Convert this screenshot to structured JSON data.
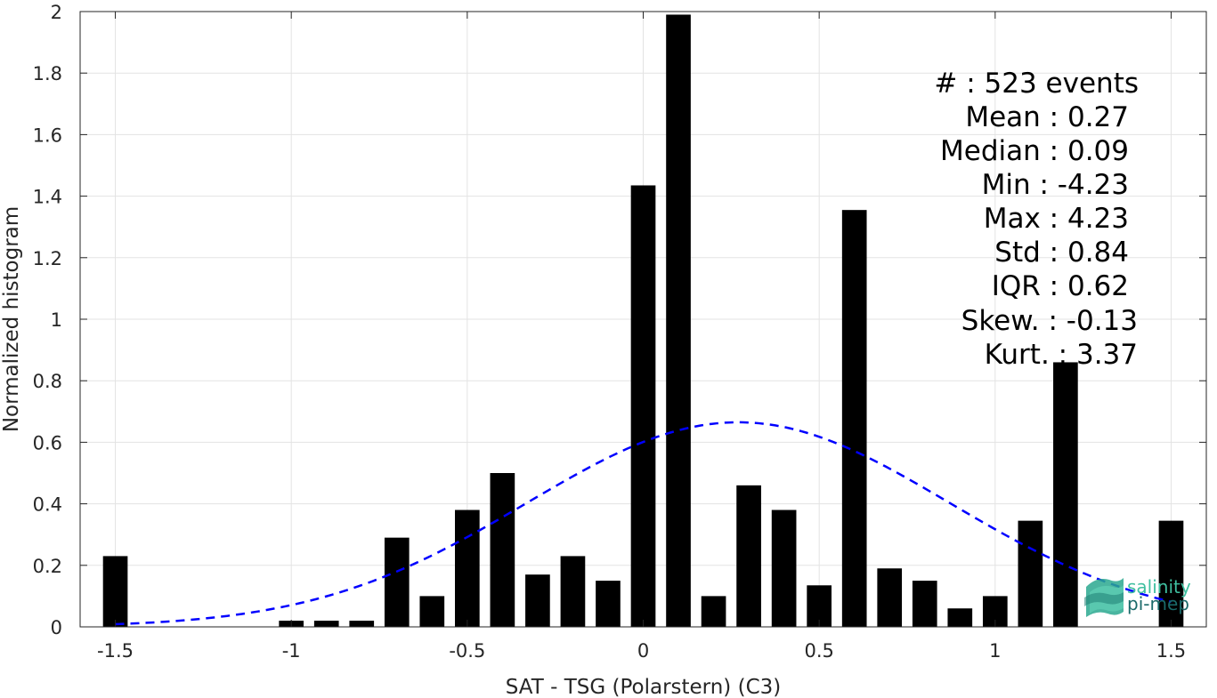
{
  "chart_data": {
    "type": "bar",
    "xlabel": "SAT - TSG (Polarstern) (C3)",
    "ylabel": "Normalized histogram",
    "xlim": [
      -1.6,
      1.6
    ],
    "ylim": [
      0,
      2
    ],
    "xticks": [
      -1.5,
      -1,
      -0.5,
      0,
      0.5,
      1,
      1.5
    ],
    "xtick_labels": [
      "-1.5",
      "-1",
      "-0.5",
      "0",
      "0.5",
      "1",
      "1.5"
    ],
    "yticks": [
      0,
      0.2,
      0.4,
      0.6,
      0.8,
      1,
      1.2,
      1.4,
      1.6,
      1.8,
      2
    ],
    "ytick_labels": [
      "0",
      "0.2",
      "0.4",
      "0.6",
      "0.8",
      "1",
      "1.2",
      "1.4",
      "1.6",
      "1.8",
      "2"
    ],
    "grid": true,
    "bin_width": 0.1,
    "bar_color": "#000000",
    "bars": [
      {
        "x": -1.5,
        "y": 0.23
      },
      {
        "x": -1.0,
        "y": 0.02
      },
      {
        "x": -0.9,
        "y": 0.02
      },
      {
        "x": -0.8,
        "y": 0.02
      },
      {
        "x": -0.7,
        "y": 0.29
      },
      {
        "x": -0.6,
        "y": 0.1
      },
      {
        "x": -0.5,
        "y": 0.38
      },
      {
        "x": -0.4,
        "y": 0.5
      },
      {
        "x": -0.3,
        "y": 0.17
      },
      {
        "x": -0.2,
        "y": 0.23
      },
      {
        "x": -0.1,
        "y": 0.15
      },
      {
        "x": 0.0,
        "y": 1.435
      },
      {
        "x": 0.1,
        "y": 1.99
      },
      {
        "x": 0.2,
        "y": 0.1
      },
      {
        "x": 0.3,
        "y": 0.46
      },
      {
        "x": 0.4,
        "y": 0.38
      },
      {
        "x": 0.5,
        "y": 0.135
      },
      {
        "x": 0.6,
        "y": 1.355
      },
      {
        "x": 0.7,
        "y": 0.19
      },
      {
        "x": 0.8,
        "y": 0.15
      },
      {
        "x": 0.9,
        "y": 0.06
      },
      {
        "x": 1.0,
        "y": 0.1
      },
      {
        "x": 1.1,
        "y": 0.345
      },
      {
        "x": 1.2,
        "y": 0.86
      },
      {
        "x": 1.5,
        "y": 0.345
      }
    ],
    "fit_curve": {
      "type": "gaussian",
      "mean": 0.27,
      "std": 0.6,
      "peak": 0.665,
      "x_range": [
        -1.5,
        1.5
      ],
      "color": "#0000ff",
      "style": "dashed"
    }
  },
  "stats": [
    {
      "name": "#  ",
      "value": "523 events"
    },
    {
      "name": "Mean",
      "value": "0.27"
    },
    {
      "name": "Median",
      "value": "0.09"
    },
    {
      "name": "Min",
      "value": "-4.23"
    },
    {
      "name": "Max",
      "value": "4.23"
    },
    {
      "name": "Std",
      "value": "0.84"
    },
    {
      "name": "IQR",
      "value": "0.62"
    },
    {
      "name": "Skew.",
      "value": "-0.13"
    },
    {
      "name": "Kurt.",
      "value": "3.37"
    }
  ],
  "logo": {
    "line1": "salinity",
    "line2": "pi-mep",
    "color1": "#3fbfa0",
    "color2": "#1a6a6a"
  }
}
